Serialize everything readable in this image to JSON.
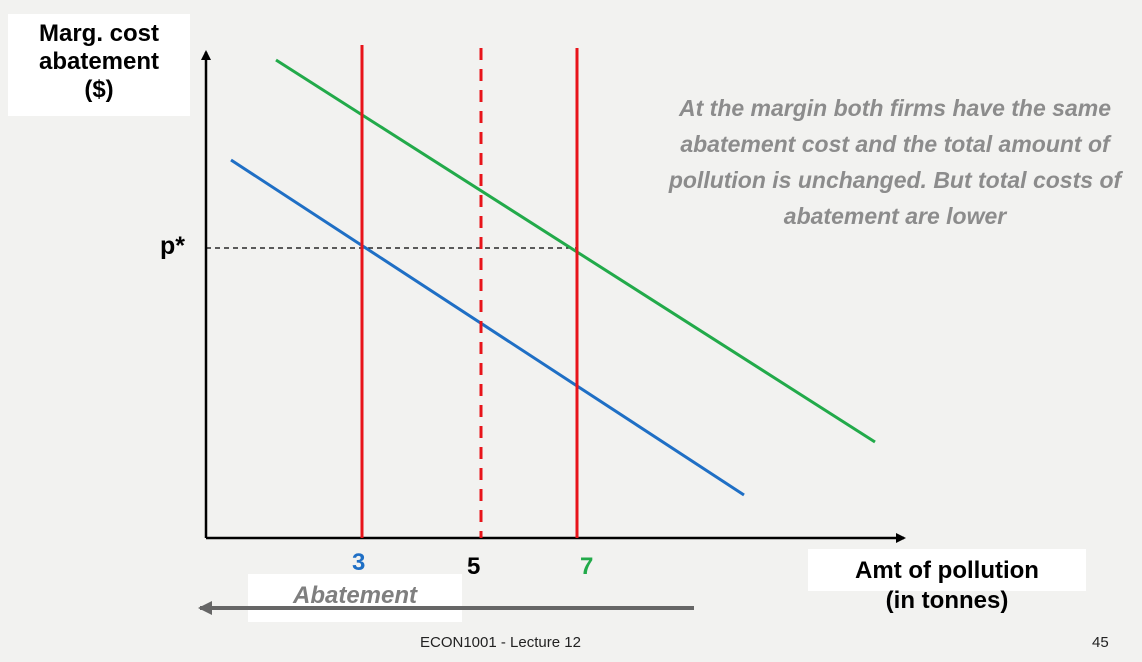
{
  "y_axis_label": "Marg. cost\nabatement\n($)",
  "x_axis_label": "Amt of pollution\n(in tonnes)",
  "price_label": "p*",
  "ticks": [
    {
      "label": "3",
      "color": "#1f6fc5"
    },
    {
      "label": "5",
      "color": "#000000"
    },
    {
      "label": "7",
      "color": "#22aa4a"
    }
  ],
  "abatement_label": "Abatement",
  "annotation": "At the margin both firms have the same abatement cost and the total amount of pollution is unchanged. But total costs of abatement are lower",
  "footer": "ECON1001 - Lecture 12",
  "page_number": "45",
  "colors": {
    "firm_a_curve": "#1f6fc5",
    "firm_b_curve": "#22aa4a",
    "quantity_lines": "#e8141a",
    "axes": "#000000",
    "abatement_arrow": "#666666"
  }
}
